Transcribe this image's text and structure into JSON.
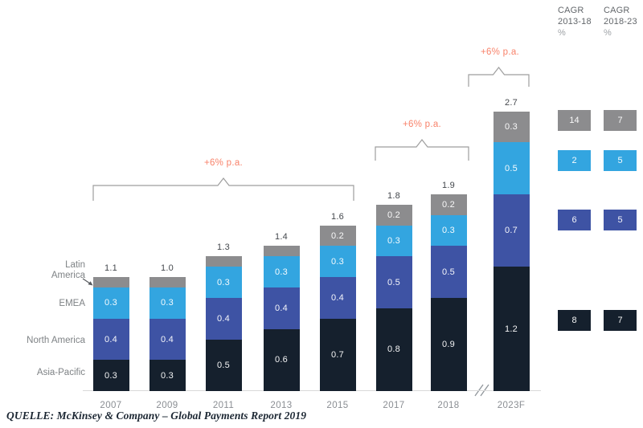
{
  "page": {
    "source_line": "QUELLE: McKinsey & Company – Global Payments Report 2019"
  },
  "chart_data": {
    "type": "bar",
    "variant": "stacked",
    "title": "",
    "xlabel": "",
    "ylabel": "",
    "ylim": [
      0,
      2.7
    ],
    "grid": "off",
    "legend_position": "left-of-first-bar",
    "categories": [
      "2007",
      "2009",
      "2011",
      "2013",
      "2015",
      "2017",
      "2018",
      "2023F"
    ],
    "totals": [
      "1.1",
      "1.0",
      "1.3",
      "1.4",
      "1.6",
      "1.8",
      "1.9",
      "2.7"
    ],
    "series": [
      {
        "name": "Asia-Pacific",
        "color": "#15202d",
        "values": [
          0.3,
          0.3,
          0.5,
          0.6,
          0.7,
          0.8,
          0.9,
          1.2
        ],
        "labels": [
          "0.3",
          "0.3",
          "0.5",
          "0.6",
          "0.7",
          "0.8",
          "0.9",
          "1.2"
        ]
      },
      {
        "name": "North America",
        "color": "#3e53a4",
        "values": [
          0.4,
          0.4,
          0.4,
          0.4,
          0.4,
          0.5,
          0.5,
          0.7
        ],
        "labels": [
          "0.4",
          "0.4",
          "0.4",
          "0.4",
          "0.4",
          "0.5",
          "0.5",
          "0.7"
        ]
      },
      {
        "name": "EMEA",
        "color": "#33a5e0",
        "values": [
          0.3,
          0.3,
          0.3,
          0.3,
          0.3,
          0.3,
          0.3,
          0.5
        ],
        "labels": [
          "0.3",
          "0.3",
          "0.3",
          "0.3",
          "0.3",
          "0.3",
          "0.3",
          "0.5"
        ]
      },
      {
        "name": "Latin America",
        "color": "#8c8c8e",
        "values": [
          0.1,
          0.1,
          0.1,
          0.1,
          0.2,
          0.2,
          0.2,
          0.3
        ],
        "labels": [
          "",
          "",
          "",
          "",
          "0.2",
          "0.2",
          "0.2",
          "0.3"
        ]
      }
    ],
    "annotations": [
      {
        "label": "+6% p.a.",
        "spans": "2007–2015"
      },
      {
        "label": "+6% p.a.",
        "spans": "2017–2018"
      },
      {
        "label": "+6% p.a.",
        "spans": "2018–2023F"
      }
    ],
    "axis_break_between": "2018 and 2023F"
  },
  "cagr_panel": {
    "columns": [
      {
        "title": "CAGR",
        "period": "2013-18",
        "unit": "%"
      },
      {
        "title": "CAGR",
        "period": "2018-23",
        "unit": "%"
      }
    ],
    "rows": [
      {
        "region": "Latin America",
        "color": "#8c8c8e",
        "values": [
          "14",
          "7"
        ]
      },
      {
        "region": "EMEA",
        "color": "#33a5e0",
        "values": [
          "2",
          "5"
        ]
      },
      {
        "region": "North America",
        "color": "#3e53a4",
        "values": [
          "6",
          "5"
        ]
      },
      {
        "region": "Asia-Pacific",
        "color": "#15202d",
        "values": [
          "8",
          "7"
        ]
      }
    ]
  }
}
